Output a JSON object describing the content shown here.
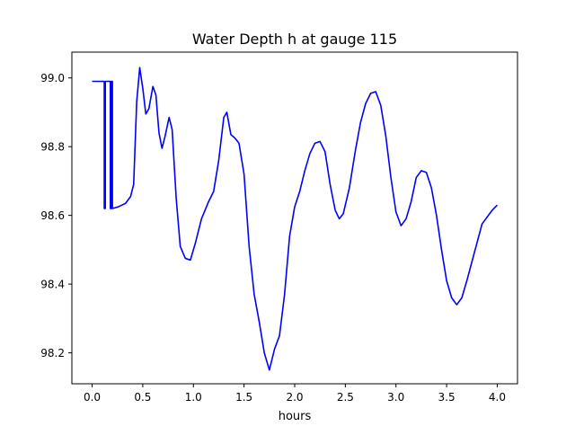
{
  "chart_data": {
    "type": "line",
    "title": "Water Depth h at gauge 115",
    "xlabel": "hours",
    "ylabel": "",
    "xlim": [
      -0.2,
      4.2
    ],
    "ylim": [
      98.11,
      99.075
    ],
    "xticks": [
      0.0,
      0.5,
      1.0,
      1.5,
      2.0,
      2.5,
      3.0,
      3.5,
      4.0
    ],
    "xtick_labels": [
      "0.0",
      "0.5",
      "1.0",
      "1.5",
      "2.0",
      "2.5",
      "3.0",
      "3.5",
      "4.0"
    ],
    "yticks": [
      98.2,
      98.4,
      98.6,
      98.8,
      99.0
    ],
    "ytick_labels": [
      "98.2",
      "98.4",
      "98.6",
      "98.8",
      "99.0"
    ],
    "grid": false,
    "series": [
      {
        "color": "#0000ff",
        "points": [
          [
            0.0,
            98.99
          ],
          [
            0.12,
            98.99
          ],
          [
            0.12,
            98.62
          ],
          [
            0.13,
            98.62
          ],
          [
            0.13,
            98.99
          ],
          [
            0.18,
            98.99
          ],
          [
            0.18,
            98.62
          ],
          [
            0.19,
            98.62
          ],
          [
            0.19,
            98.99
          ],
          [
            0.2,
            98.99
          ],
          [
            0.2,
            98.62
          ],
          [
            0.26,
            98.625
          ],
          [
            0.33,
            98.635
          ],
          [
            0.38,
            98.655
          ],
          [
            0.41,
            98.69
          ],
          [
            0.44,
            98.93
          ],
          [
            0.47,
            99.03
          ],
          [
            0.5,
            98.97
          ],
          [
            0.53,
            98.895
          ],
          [
            0.56,
            98.91
          ],
          [
            0.6,
            98.975
          ],
          [
            0.63,
            98.95
          ],
          [
            0.66,
            98.84
          ],
          [
            0.69,
            98.795
          ],
          [
            0.72,
            98.83
          ],
          [
            0.76,
            98.885
          ],
          [
            0.79,
            98.85
          ],
          [
            0.83,
            98.65
          ],
          [
            0.87,
            98.51
          ],
          [
            0.92,
            98.475
          ],
          [
            0.97,
            98.47
          ],
          [
            1.02,
            98.52
          ],
          [
            1.08,
            98.59
          ],
          [
            1.15,
            98.64
          ],
          [
            1.2,
            98.67
          ],
          [
            1.25,
            98.76
          ],
          [
            1.3,
            98.885
          ],
          [
            1.33,
            98.9
          ],
          [
            1.37,
            98.835
          ],
          [
            1.41,
            98.825
          ],
          [
            1.45,
            98.81
          ],
          [
            1.5,
            98.72
          ],
          [
            1.55,
            98.51
          ],
          [
            1.6,
            98.37
          ],
          [
            1.65,
            98.29
          ],
          [
            1.7,
            98.2
          ],
          [
            1.75,
            98.15
          ],
          [
            1.8,
            98.21
          ],
          [
            1.85,
            98.25
          ],
          [
            1.9,
            98.37
          ],
          [
            1.95,
            98.54
          ],
          [
            2.0,
            98.625
          ],
          [
            2.05,
            98.67
          ],
          [
            2.1,
            98.73
          ],
          [
            2.15,
            98.78
          ],
          [
            2.2,
            98.81
          ],
          [
            2.25,
            98.815
          ],
          [
            2.3,
            98.785
          ],
          [
            2.35,
            98.69
          ],
          [
            2.4,
            98.615
          ],
          [
            2.44,
            98.59
          ],
          [
            2.48,
            98.605
          ],
          [
            2.54,
            98.68
          ],
          [
            2.6,
            98.79
          ],
          [
            2.65,
            98.87
          ],
          [
            2.7,
            98.925
          ],
          [
            2.75,
            98.955
          ],
          [
            2.8,
            98.96
          ],
          [
            2.85,
            98.92
          ],
          [
            2.9,
            98.83
          ],
          [
            2.95,
            98.71
          ],
          [
            3.0,
            98.61
          ],
          [
            3.05,
            98.57
          ],
          [
            3.1,
            98.59
          ],
          [
            3.15,
            98.64
          ],
          [
            3.2,
            98.71
          ],
          [
            3.25,
            98.73
          ],
          [
            3.3,
            98.725
          ],
          [
            3.35,
            98.68
          ],
          [
            3.4,
            98.6
          ],
          [
            3.45,
            98.5
          ],
          [
            3.5,
            98.41
          ],
          [
            3.55,
            98.36
          ],
          [
            3.6,
            98.34
          ],
          [
            3.65,
            98.36
          ],
          [
            3.7,
            98.41
          ],
          [
            3.75,
            98.465
          ],
          [
            3.8,
            98.52
          ],
          [
            3.85,
            98.575
          ],
          [
            3.9,
            98.595
          ],
          [
            3.95,
            98.615
          ],
          [
            4.0,
            98.63
          ]
        ]
      }
    ]
  }
}
